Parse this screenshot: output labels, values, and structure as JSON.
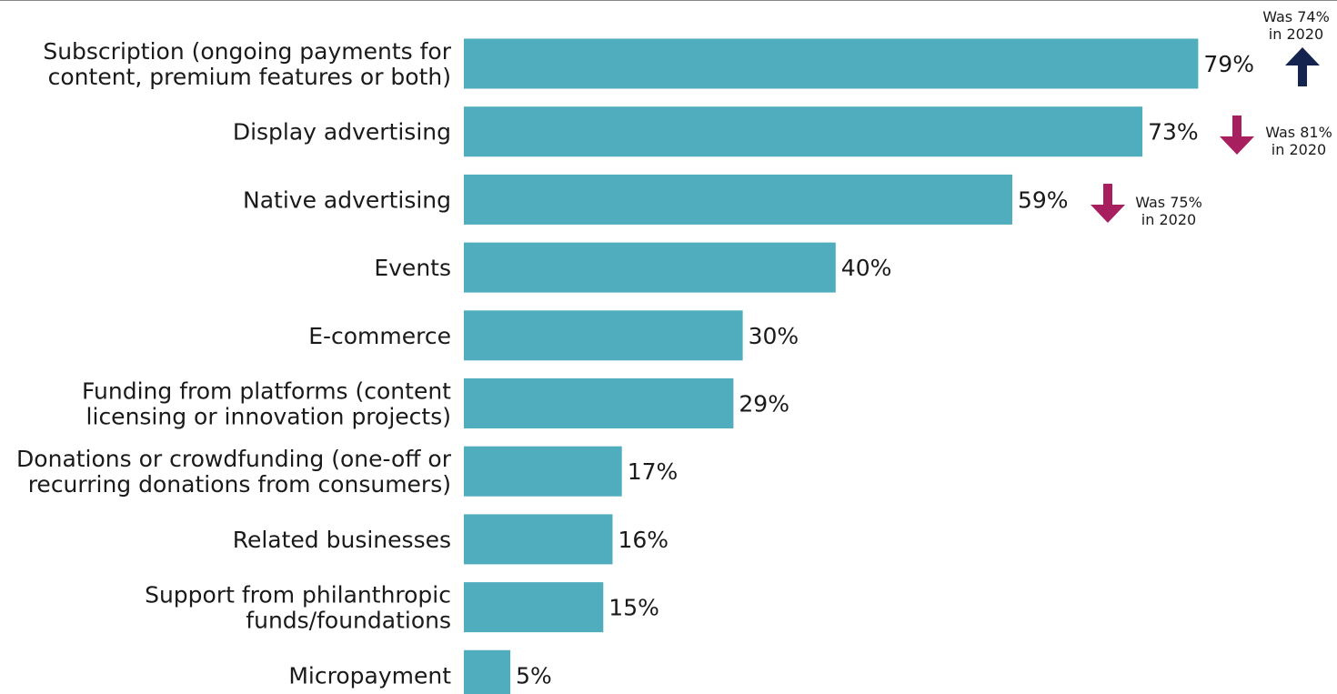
{
  "chart_data": {
    "type": "bar",
    "orientation": "horizontal",
    "categories": [
      [
        "Subscription (ongoing  payments for",
        "content, premium features or both)"
      ],
      [
        "Display advertising"
      ],
      [
        "Native advertising"
      ],
      [
        "Events"
      ],
      [
        "E-commerce"
      ],
      [
        "Funding from platforms (content",
        "licensing or innovation projects)"
      ],
      [
        "Donations or crowdfunding (one-off or",
        "recurring donations from consumers)"
      ],
      [
        "Related businesses"
      ],
      [
        "Support from philanthropic",
        "funds/foundations"
      ],
      [
        "Micropayment"
      ]
    ],
    "values": [
      79,
      73,
      59,
      40,
      30,
      29,
      17,
      16,
      15,
      5
    ],
    "value_labels": [
      "79%",
      "73%",
      "59%",
      "40%",
      "30%",
      "29%",
      "17%",
      "16%",
      "15%",
      "5%"
    ],
    "annotations": [
      {
        "category_index": 0,
        "direction": "up",
        "lines": [
          "Was 74%",
          "in 2020"
        ]
      },
      {
        "category_index": 1,
        "direction": "down",
        "lines": [
          "Was 81%",
          "in 2020"
        ]
      },
      {
        "category_index": 2,
        "direction": "down",
        "lines": [
          "Was 75%",
          "in 2020"
        ]
      }
    ],
    "xlim": [
      0,
      100
    ],
    "grid": false,
    "legend": "none",
    "colors": {
      "bar": "#4fadbd",
      "arrow_up": "#15234f",
      "arrow_down": "#a81f5f",
      "text": "#1a1a1a"
    }
  }
}
